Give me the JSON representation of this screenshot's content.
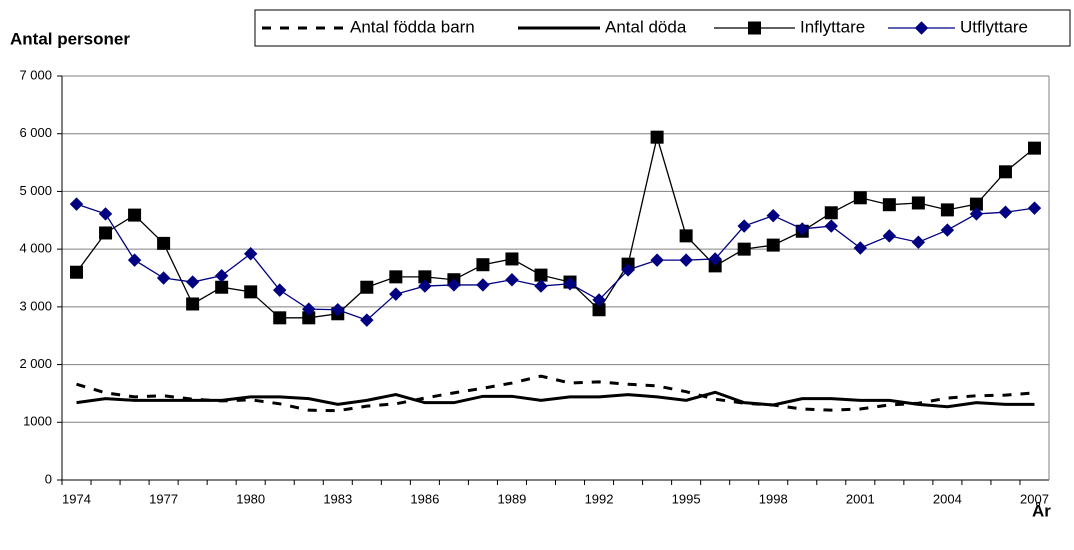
{
  "chart_data": {
    "type": "line",
    "y_label": "Antal personer",
    "x_label": "År",
    "categories": [
      "1974",
      null,
      null,
      "1977",
      null,
      null,
      "1980",
      null,
      null,
      "1983",
      null,
      null,
      "1986",
      null,
      null,
      "1989",
      null,
      null,
      "1992",
      null,
      null,
      "1995",
      null,
      null,
      "1998",
      null,
      null,
      "2001",
      null,
      null,
      "2004",
      null,
      null,
      "2007"
    ],
    "series": [
      {
        "name": "Antal födda barn",
        "color": "#000000",
        "style": "dashed",
        "marker": "none",
        "values": [
          1660,
          1510,
          1440,
          1460,
          1400,
          1370,
          1390,
          1320,
          1210,
          1200,
          1280,
          1320,
          1420,
          1510,
          1590,
          1680,
          1800,
          1680,
          1700,
          1660,
          1630,
          1530,
          1400,
          1330,
          1300,
          1230,
          1210,
          1230,
          1300,
          1330,
          1420,
          1460,
          1470,
          1510
        ]
      },
      {
        "name": "Antal döda",
        "color": "#000000",
        "style": "solid",
        "marker": "none",
        "values": [
          1340,
          1410,
          1380,
          1380,
          1380,
          1380,
          1440,
          1440,
          1410,
          1310,
          1380,
          1480,
          1340,
          1340,
          1450,
          1450,
          1380,
          1440,
          1440,
          1480,
          1440,
          1380,
          1520,
          1340,
          1300,
          1410,
          1410,
          1380,
          1380,
          1310,
          1270,
          1340,
          1310,
          1310
        ]
      },
      {
        "name": "Inflyttare",
        "color": "#000000",
        "style": "solid",
        "marker": "square",
        "values": [
          3600,
          4280,
          4590,
          4100,
          3050,
          3340,
          3260,
          2810,
          2810,
          2880,
          3340,
          3520,
          3520,
          3470,
          3730,
          3830,
          3550,
          3430,
          2950,
          3740,
          5940,
          4230,
          3710,
          4000,
          4070,
          4310,
          4630,
          4890,
          4770,
          4800,
          4680,
          4780,
          5340,
          5750
        ]
      },
      {
        "name": "Utflyttare",
        "color": "#000080",
        "style": "solid",
        "marker": "diamond",
        "values": [
          4780,
          4610,
          3810,
          3500,
          3430,
          3540,
          3920,
          3290,
          2960,
          2950,
          2770,
          3220,
          3360,
          3380,
          3380,
          3470,
          3360,
          3400,
          3120,
          3640,
          3810,
          3810,
          3830,
          4400,
          4580,
          4350,
          4400,
          4020,
          4230,
          4120,
          4330,
          4610,
          4640,
          4710
        ]
      }
    ],
    "ylim": [
      0,
      7000
    ],
    "yticks": [
      0,
      1000,
      {
        "value": 2000,
        "label": "2 000"
      },
      {
        "value": 3000,
        "label": "3 000"
      },
      {
        "value": 4000,
        "label": "4 000"
      },
      {
        "value": 5000,
        "label": "5 000"
      },
      {
        "value": 6000,
        "label": "6 000"
      },
      {
        "value": 7000,
        "label": "7 000"
      }
    ],
    "grid": true
  }
}
